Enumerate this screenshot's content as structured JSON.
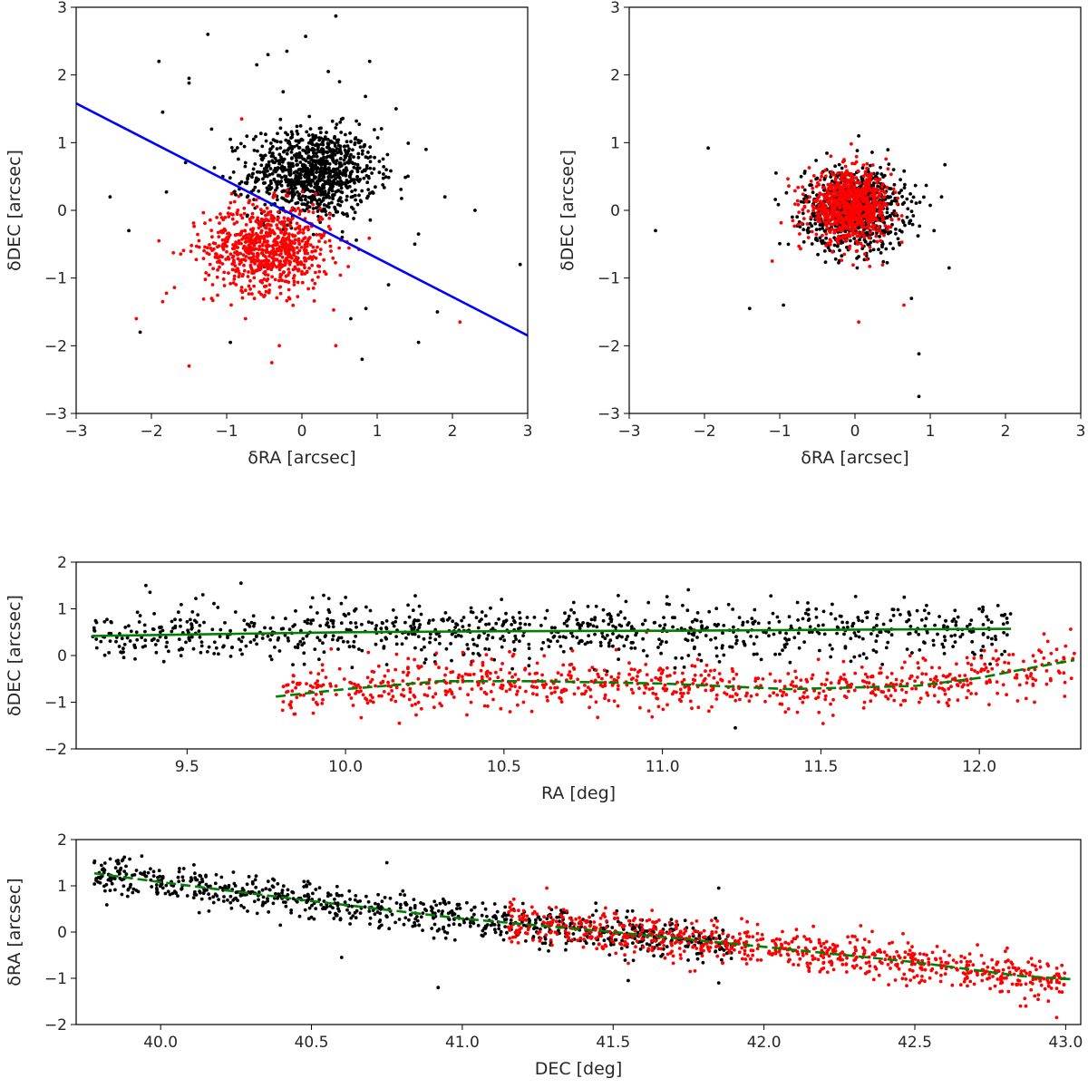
{
  "colors": {
    "black_points": "#000000",
    "red_points": "#ff0000",
    "separator_line": "#0000ff",
    "trend_line": "#008000",
    "frame": "#000000",
    "background": "#ffffff"
  },
  "chart_data": [
    {
      "type": "scatter",
      "xlabel": "δRA [arcsec]",
      "ylabel": "δDEC [arcsec]",
      "xlim": [
        -3,
        3
      ],
      "ylim": [
        -3,
        3
      ],
      "xticks": [
        -3,
        -2,
        -1,
        0,
        1,
        2,
        3
      ],
      "yticks": [
        -3,
        -2,
        -1,
        0,
        1,
        2,
        3
      ],
      "grid": false,
      "series": [
        {
          "color": "black",
          "cluster": {
            "n": 980,
            "cx": 0.15,
            "cy": 0.55,
            "sx": 0.42,
            "sy": 0.33
          },
          "outliers": [
            [
              -1.9,
              2.2
            ],
            [
              -1.25,
              2.6
            ],
            [
              -0.45,
              2.3
            ],
            [
              0.45,
              2.87
            ],
            [
              0.05,
              2.57
            ],
            [
              -0.2,
              2.35
            ],
            [
              -0.6,
              2.15
            ],
            [
              -1.5,
              1.95
            ],
            [
              -1.5,
              1.88
            ],
            [
              -1.2,
              1.2
            ],
            [
              -1.85,
              1.45
            ],
            [
              -2.55,
              0.2
            ],
            [
              -2.3,
              -0.3
            ],
            [
              -2.15,
              -1.8
            ],
            [
              -1.8,
              0.27
            ],
            [
              0.9,
              2.2
            ],
            [
              -0.25,
              1.75
            ],
            [
              1.55,
              -1.95
            ],
            [
              1.8,
              -1.5
            ],
            [
              2.3,
              0
            ],
            [
              2.9,
              -0.8
            ],
            [
              1.5,
              -0.5
            ],
            [
              0.8,
              -2.2
            ],
            [
              -0.95,
              -1.95
            ],
            [
              0.85,
              -1.45
            ],
            [
              1.15,
              -1.1
            ],
            [
              1.65,
              0.9
            ],
            [
              1.9,
              0.2
            ],
            [
              -0.95,
              1.05
            ],
            [
              0.65,
              -1.6
            ],
            [
              1.25,
              1.5
            ],
            [
              -1.05,
              0.5
            ],
            [
              1.55,
              -0.35
            ],
            [
              0.5,
              1.9
            ],
            [
              0.35,
              2.05
            ]
          ]
        },
        {
          "color": "red",
          "cluster": {
            "n": 780,
            "cx": -0.45,
            "cy": -0.55,
            "sx": 0.42,
            "sy": 0.32
          },
          "outliers": [
            [
              -2.2,
              -1.6
            ],
            [
              -1.5,
              -2.3
            ],
            [
              -0.75,
              -1.6
            ],
            [
              -0.4,
              -2.25
            ],
            [
              -0.3,
              -2.0
            ],
            [
              0.45,
              -2.0
            ],
            [
              2.1,
              -1.65
            ],
            [
              -1.9,
              -0.45
            ],
            [
              -0.8,
              1.35
            ],
            [
              -1.2,
              -1.3
            ],
            [
              -1.85,
              -1.35
            ]
          ]
        }
      ],
      "line": {
        "x": [
          -3,
          3
        ],
        "y": [
          1.58,
          -1.85
        ]
      }
    },
    {
      "type": "scatter",
      "xlabel": "δRA [arcsec]",
      "ylabel": "δDEC [arcsec]",
      "xlim": [
        -3,
        3
      ],
      "ylim": [
        -3,
        3
      ],
      "xticks": [
        -3,
        -2,
        -1,
        0,
        1,
        2,
        3
      ],
      "yticks": [
        -3,
        -2,
        -1,
        0,
        1,
        2,
        3
      ],
      "grid": false,
      "series": [
        {
          "color": "black",
          "cluster": {
            "n": 900,
            "cx": 0.0,
            "cy": 0.02,
            "sx": 0.33,
            "sy": 0.3
          },
          "outliers": [
            [
              -1.95,
              0.92
            ],
            [
              -2.65,
              -0.3
            ],
            [
              -1.4,
              -1.45
            ],
            [
              -0.95,
              -1.4
            ],
            [
              0.85,
              -2.12
            ],
            [
              0.85,
              -2.75
            ],
            [
              1.25,
              -0.85
            ],
            [
              -1.05,
              0.55
            ],
            [
              0.75,
              -1.3
            ],
            [
              1.05,
              -0.3
            ],
            [
              1.15,
              0.2
            ],
            [
              0.05,
              1.1
            ]
          ]
        },
        {
          "color": "red",
          "cluster": {
            "n": 800,
            "cx": -0.08,
            "cy": 0.05,
            "sx": 0.27,
            "sy": 0.25
          },
          "outliers": [
            [
              -1.1,
              -0.75
            ],
            [
              0.05,
              -1.65
            ],
            [
              -0.05,
              0.98
            ],
            [
              0.65,
              -1.4
            ]
          ]
        }
      ]
    },
    {
      "type": "scatter",
      "xlabel": "RA [deg]",
      "ylabel": "δDEC [arcsec]",
      "xlim": [
        9.15,
        12.32
      ],
      "ylim": [
        -2,
        2
      ],
      "xticks": [
        9.5,
        10.0,
        10.5,
        11.0,
        11.5,
        12.0
      ],
      "yticks": [
        -2,
        -1,
        0,
        1,
        2
      ],
      "grid": false,
      "series": [
        {
          "color": "black",
          "band": {
            "n": 900,
            "x0": 9.2,
            "x1": 12.1,
            "sy": 0.3,
            "curve": "black_trend"
          },
          "outliers": [
            [
              9.37,
              1.5
            ],
            [
              9.67,
              1.55
            ],
            [
              10.22,
              1.28
            ],
            [
              11.23,
              -1.55
            ],
            [
              9.55,
              1.3
            ]
          ]
        },
        {
          "color": "red",
          "band": {
            "n": 780,
            "x0": 9.8,
            "x1": 12.3,
            "sy": 0.27,
            "curve": "red_trend"
          },
          "outliers": [
            [
              10.17,
              -1.45
            ],
            [
              11.1,
              0.55
            ],
            [
              10.95,
              0.5
            ]
          ]
        }
      ],
      "trends": [
        {
          "style": "solid",
          "x": [
            9.2,
            9.6,
            10.0,
            10.5,
            11.0,
            11.5,
            12.1
          ],
          "y": [
            0.42,
            0.46,
            0.5,
            0.52,
            0.53,
            0.55,
            0.57
          ]
        },
        {
          "style": "dashed",
          "x": [
            9.78,
            10.0,
            10.3,
            10.6,
            11.0,
            11.4,
            11.8,
            12.0,
            12.15,
            12.3
          ],
          "y": [
            -0.88,
            -0.72,
            -0.55,
            -0.55,
            -0.6,
            -0.72,
            -0.65,
            -0.48,
            -0.28,
            -0.1
          ]
        }
      ]
    },
    {
      "type": "scatter",
      "xlabel": "DEC [deg]",
      "ylabel": "δRA [arcsec]",
      "xlim": [
        39.72,
        43.05
      ],
      "ylim": [
        -2,
        2
      ],
      "xticks": [
        40.0,
        40.5,
        41.0,
        41.5,
        42.0,
        42.5,
        43.0
      ],
      "yticks": [
        -2,
        -1,
        0,
        1,
        2
      ],
      "grid": false,
      "series": [
        {
          "color": "black",
          "band": {
            "n": 850,
            "x0": 39.78,
            "x1": 41.9,
            "sy": 0.2,
            "curve": "dec_trend"
          },
          "outliers": [
            [
              39.88,
              1.62
            ],
            [
              40.75,
              1.5
            ],
            [
              40.92,
              -1.2
            ],
            [
              41.85,
              0.95
            ],
            [
              41.55,
              -1.05
            ],
            [
              41.85,
              -1.1
            ],
            [
              40.6,
              -0.55
            ]
          ]
        },
        {
          "color": "red",
          "band": {
            "n": 820,
            "x0": 41.15,
            "x1": 43.0,
            "sy": 0.22,
            "curve": "dec_trend"
          },
          "outliers": [
            [
              42.97,
              -1.85
            ],
            [
              42.85,
              -1.6
            ],
            [
              41.28,
              0.95
            ]
          ]
        }
      ],
      "trends": [
        {
          "style": "dashed",
          "x": [
            39.78,
            40.0,
            40.5,
            41.0,
            41.5,
            42.0,
            42.5,
            42.85,
            43.02
          ],
          "y": [
            1.27,
            1.08,
            0.67,
            0.29,
            0.0,
            -0.32,
            -0.65,
            -0.95,
            -1.02
          ]
        }
      ]
    }
  ]
}
